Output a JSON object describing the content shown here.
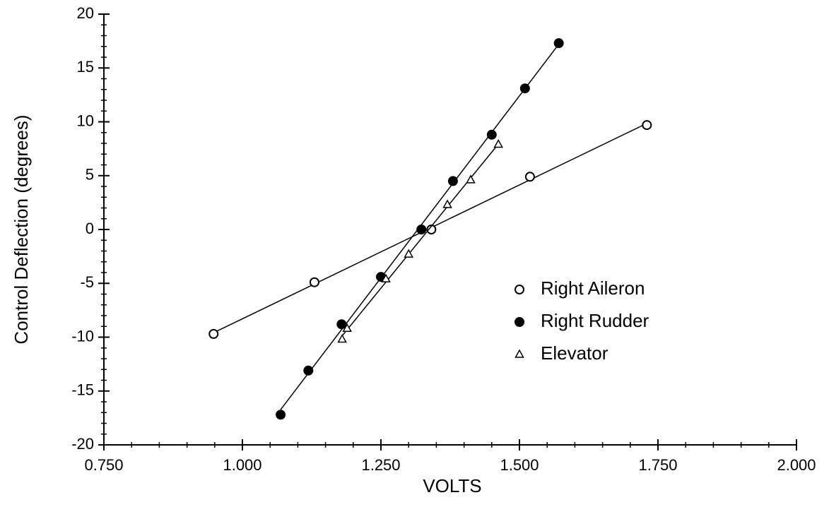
{
  "chart_data": {
    "type": "scatter",
    "x_label": "VOLTS",
    "y_label": "Control Deflection (degrees)",
    "xlim": [
      0.75,
      2.0
    ],
    "ylim": [
      -20,
      20
    ],
    "xticks": [
      {
        "value": 0.75,
        "label": "0.750"
      },
      {
        "value": 1.0,
        "label": "1.000"
      },
      {
        "value": 1.25,
        "label": "1.250"
      },
      {
        "value": 1.5,
        "label": "1.500"
      },
      {
        "value": 1.75,
        "label": "1.750"
      },
      {
        "value": 2.0,
        "label": "2.000"
      }
    ],
    "yticks": [
      -20,
      -15,
      -10,
      -5,
      0,
      5,
      10,
      15,
      20
    ],
    "fit_lines": true,
    "legend": "lower right",
    "series": [
      {
        "name": "Right Aileron",
        "marker": "open-circle",
        "color": "#000000",
        "x": [
          0.948,
          1.13,
          1.341,
          1.519,
          1.73
        ],
        "values": [
          -9.7,
          -4.9,
          0,
          4.9,
          9.7
        ]
      },
      {
        "name": "Right Rudder",
        "marker": "filled-circle",
        "color": "#000000",
        "x": [
          1.069,
          1.119,
          1.179,
          1.25,
          1.323,
          1.38,
          1.45,
          1.51,
          1.571
        ],
        "values": [
          -17.2,
          -13.1,
          -8.8,
          -4.4,
          0,
          4.5,
          8.8,
          13.1,
          17.3
        ]
      },
      {
        "name": "Elevator",
        "marker": "triangle",
        "color": "#000000",
        "x": [
          1.18,
          1.189,
          1.259,
          1.3,
          1.37,
          1.412,
          1.462
        ],
        "values": [
          -10.2,
          -9.2,
          -4.6,
          -2.3,
          2.3,
          4.6,
          7.9
        ]
      }
    ]
  }
}
